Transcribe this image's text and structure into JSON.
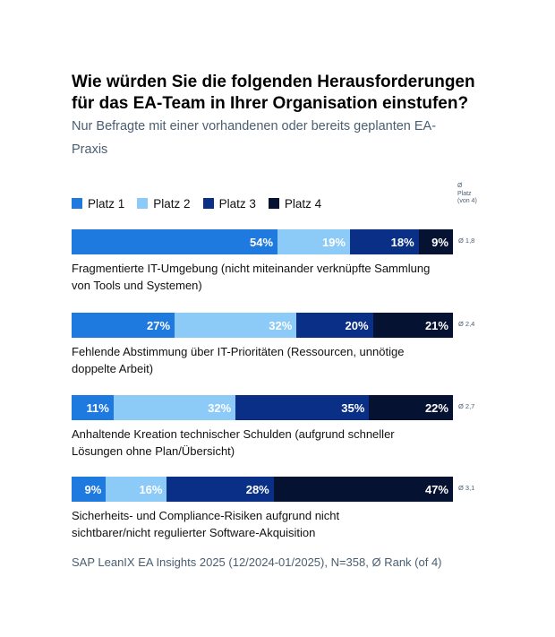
{
  "title": "Wie würden Sie die folgenden Herausforderungen für das EA-Team in Ihrer Organisation einstufen?",
  "subtitle": "Nur Befragte mit einer vorhandenen oder bereits geplanten EA-Praxis",
  "legend": {
    "items": [
      {
        "label": "Platz 1",
        "color": "#1f7ae0"
      },
      {
        "label": "Platz 2",
        "color": "#8ccaf7"
      },
      {
        "label": "Platz 3",
        "color": "#0a2f87"
      },
      {
        "label": "Platz 4",
        "color": "#061232"
      }
    ],
    "avg_header_lines": [
      "Ø",
      "Platz",
      "(von 4)"
    ]
  },
  "footer": "SAP LeanIX EA Insights 2025 (12/2024-01/2025), N=358, Ø Rank (of 4)",
  "chart_data": {
    "type": "bar",
    "orientation": "horizontal",
    "stacked": true,
    "unit": "%",
    "title": "Wie würden Sie die folgenden Herausforderungen für das EA-Team in Ihrer Organisation einstufen?",
    "series_names": [
      "Platz 1",
      "Platz 2",
      "Platz 3",
      "Platz 4"
    ],
    "series_colors": [
      "#1f7ae0",
      "#8ccaf7",
      "#0a2f87",
      "#061232"
    ],
    "label_colors": [
      "#ffffff",
      "#ffffff",
      "#ffffff",
      "#ffffff"
    ],
    "rows": [
      {
        "lines": [
          "Fragmentierte IT-Umgebung (nicht miteinander verknüpfte Sammlung",
          "von Tools und Systemen)"
        ],
        "values": [
          54,
          19,
          18,
          9
        ],
        "labels": [
          "54%",
          "19%",
          "18%",
          "9%"
        ],
        "avg": "Ø 1,8"
      },
      {
        "lines": [
          "Fehlende Abstimmung über IT-Prioritäten (Ressourcen, unnötige",
          "doppelte Arbeit)"
        ],
        "values": [
          27,
          32,
          20,
          21
        ],
        "labels": [
          "27%",
          "32%",
          "20%",
          "21%"
        ],
        "avg": "Ø 2,4"
      },
      {
        "lines": [
          "Anhaltende Kreation technischer Schulden (aufgrund schneller",
          "Lösungen ohne Plan/Übersicht)"
        ],
        "values": [
          11,
          32,
          35,
          22
        ],
        "labels": [
          "11%",
          "32%",
          "35%",
          "22%"
        ],
        "avg": "Ø 2,7"
      },
      {
        "lines": [
          "Sicherheits- und Compliance-Risiken aufgrund nicht",
          "sichtbarer/nicht regulierter Software-Akquisition"
        ],
        "values": [
          9,
          16,
          28,
          47
        ],
        "labels": [
          "9%",
          "16%",
          "28%",
          "47%"
        ],
        "avg": "Ø 3,1"
      }
    ]
  }
}
